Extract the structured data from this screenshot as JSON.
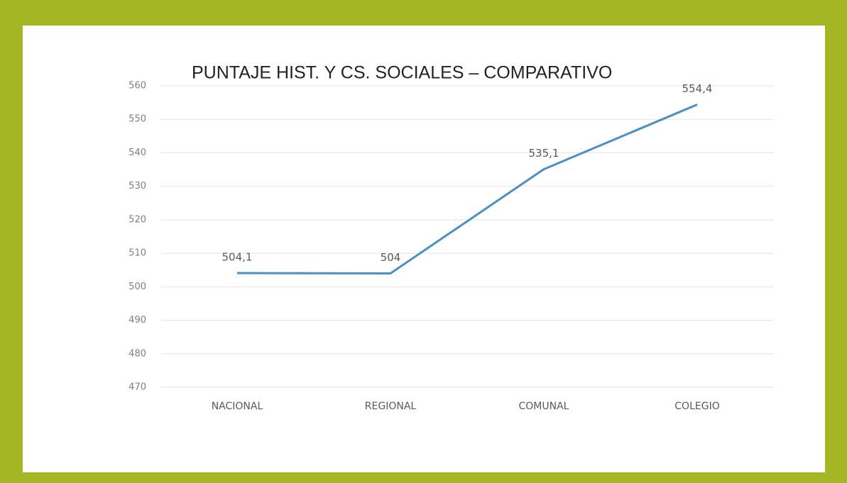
{
  "chart_data": {
    "type": "line",
    "title": "PUNTAJE HIST. Y CS. SOCIALES – COMPARATIVO",
    "categories": [
      "NACIONAL",
      "REGIONAL",
      "COMUNAL",
      "COLEGIO"
    ],
    "series": [
      {
        "name": null,
        "color": "#4a90c2",
        "values": [
          504.1,
          504,
          535.1,
          554.4
        ],
        "value_labels": [
          "504,1",
          "504",
          "535,1",
          "554,4"
        ]
      }
    ],
    "ylim": [
      470,
      560
    ],
    "yticks": [
      470,
      480,
      490,
      500,
      510,
      520,
      530,
      540,
      550,
      560
    ],
    "grid": true
  }
}
